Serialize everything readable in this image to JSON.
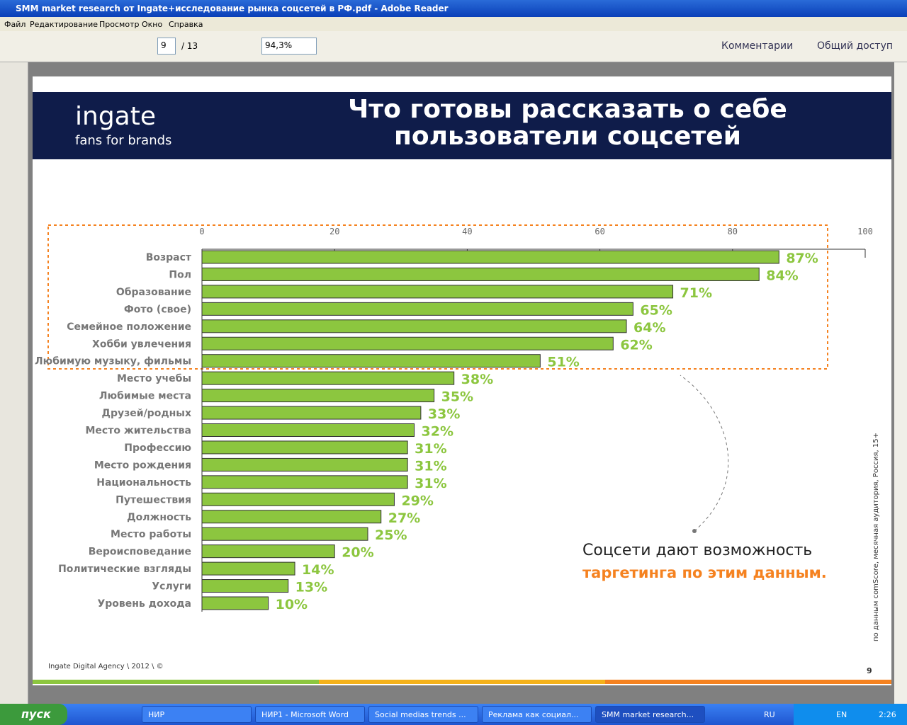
{
  "window": {
    "title": "SMM market research от Ingate+исследование рынка соцсетей в РФ.pdf - Adobe Reader",
    "menu": [
      "Файл",
      "Редактирование",
      "Просмотр",
      "Окно",
      "Справка"
    ],
    "toolbar": {
      "page": "9",
      "pages": "/ 13",
      "zoom": "94,3%",
      "comments": "Комментарии",
      "share": "Общий доступ"
    }
  },
  "document": {
    "logo": "ingate",
    "tagline": "fans for brands",
    "title_line1": "Что готовы рассказать о себе",
    "title_line2": "пользователи соцсетей",
    "note_line1": "Соцсети дают возможность",
    "note_line2": "таргетинга по этим данным.",
    "source": "по данным comScore, месячная аудитория, Россия, 15+",
    "footer": "Ingate Digital Agency \\ 2012 \\ ©",
    "page_number": "9"
  },
  "chart_data": {
    "type": "hbar",
    "color": "#8cc63f",
    "categories": [
      "Возраст",
      "Пол",
      "Образование",
      "Фото (свое)",
      "Семейное положение",
      "Хобби увлечения",
      "Любимую музыку, фильмы",
      "Место учебы",
      "Любимые места",
      "Друзей/родных",
      "Место жительства",
      "Профессию",
      "Место рождения",
      "Национальность",
      "Путешествия",
      "Должность",
      "Место работы",
      "Вероисповедание",
      "Политические взгляды",
      "Услуги",
      "Уровень дохода"
    ],
    "values": [
      87,
      84,
      71,
      65,
      64,
      62,
      51,
      38,
      35,
      33,
      32,
      31,
      31,
      31,
      29,
      27,
      25,
      20,
      14,
      13,
      10
    ],
    "value_labels": [
      "87%",
      "84%",
      "71%",
      "65%",
      "64%",
      "62%",
      "51%",
      "38%",
      "35%",
      "33%",
      "32%",
      "31%",
      "31%",
      "31%",
      "29%",
      "27%",
      "25%",
      "20%",
      "14%",
      "13%",
      "10%"
    ],
    "xlim": [
      0,
      100
    ],
    "xticks": [
      0,
      20,
      40,
      60,
      80,
      100
    ]
  },
  "taskbar": {
    "start": "пуск",
    "items": [
      "НИР",
      "НИР1 - Microsoft Word",
      "Social medias trends ...",
      "Реклама как социал...",
      "SMM market research..."
    ],
    "lang": "RU",
    "lang2": "EN",
    "clock": "2:26"
  }
}
